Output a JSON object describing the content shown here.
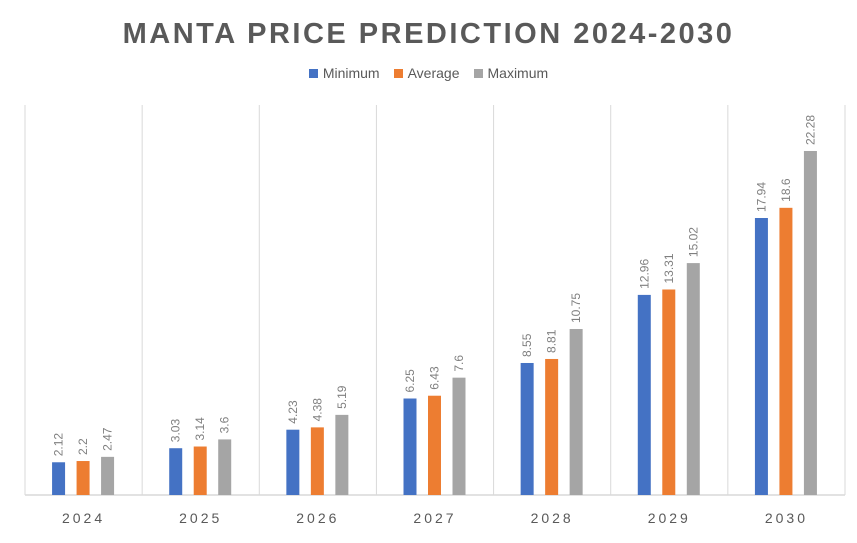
{
  "chart_data": {
    "type": "bar",
    "title": "MANTA PRICE PREDICTION 2024-2030",
    "categories": [
      "2024",
      "2025",
      "2026",
      "2027",
      "2028",
      "2029",
      "2030"
    ],
    "series": [
      {
        "name": "Minimum",
        "color": "#4472C4",
        "values": [
          2.12,
          3.03,
          4.23,
          6.25,
          8.55,
          12.96,
          17.94
        ]
      },
      {
        "name": "Average",
        "color": "#ED7D31",
        "values": [
          2.2,
          3.14,
          4.38,
          6.43,
          8.81,
          13.31,
          18.6
        ]
      },
      {
        "name": "Maximum",
        "color": "#A5A5A5",
        "values": [
          2.47,
          3.6,
          5.19,
          7.6,
          10.75,
          15.02,
          22.28
        ]
      }
    ],
    "xlabel": "",
    "ylabel": "",
    "ylim": [
      0,
      25
    ],
    "grid": "vertical category separators",
    "legend_position": "top",
    "data_labels": "rotated vertical above bars"
  }
}
